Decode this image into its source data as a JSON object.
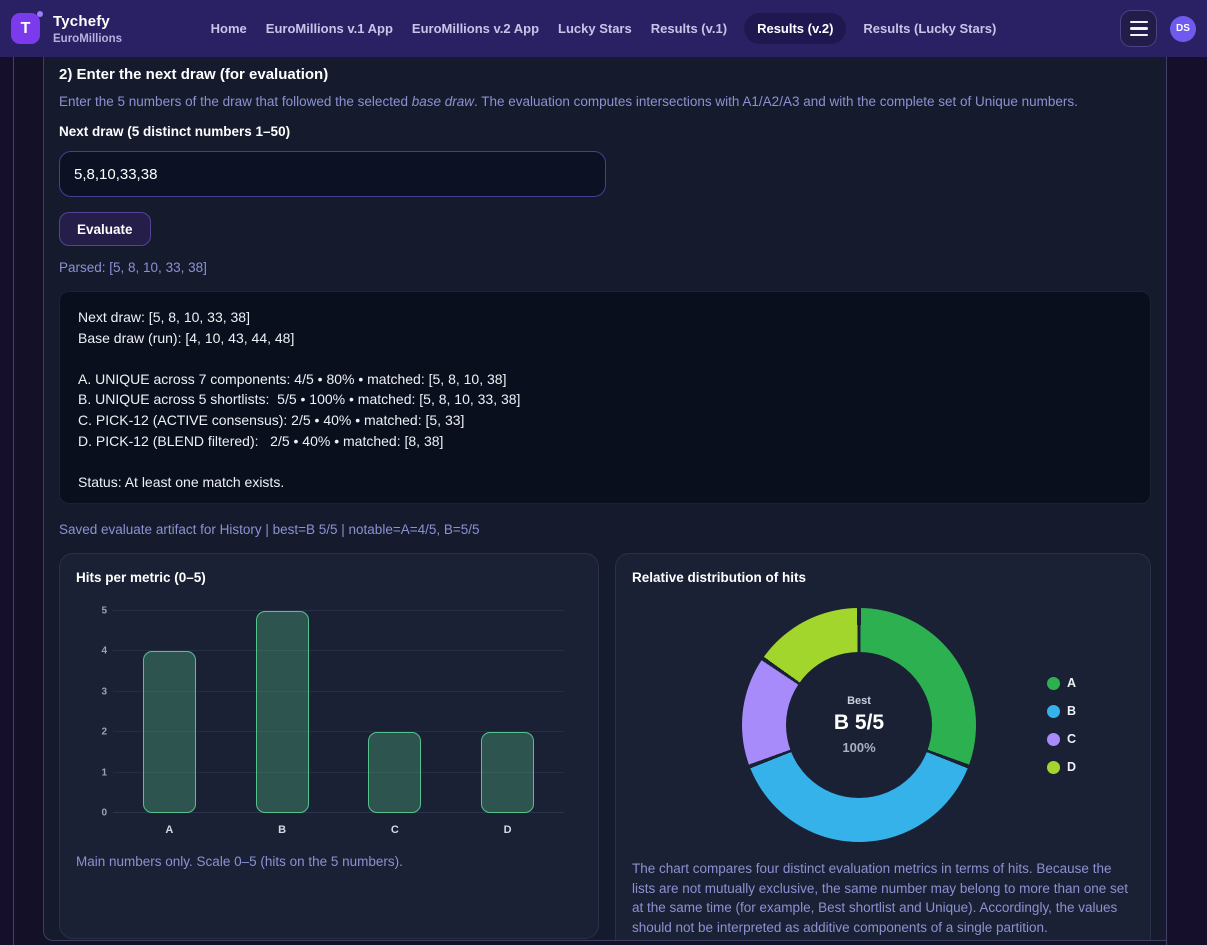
{
  "navbar": {
    "logo_letter": "T",
    "brand_title": "Tychefy",
    "brand_subtitle": "EuroMillions",
    "links": [
      {
        "label": "Home",
        "active": false
      },
      {
        "label": "EuroMillions v.1 App",
        "active": false
      },
      {
        "label": "EuroMillions v.2 App",
        "active": false
      },
      {
        "label": "Lucky Stars",
        "active": false
      },
      {
        "label": "Results (v.1)",
        "active": false
      },
      {
        "label": "Results (v.2)",
        "active": true
      },
      {
        "label": "Results (Lucky Stars)",
        "active": false
      }
    ],
    "avatar_initials": "DS"
  },
  "section": {
    "heading": "2) Enter the next draw (for evaluation)",
    "description_pre": "Enter the 5 numbers of the draw that followed the selected ",
    "description_em": "base draw",
    "description_post": ". The evaluation computes intersections with A1/A2/A3 and with the complete set of Unique numbers.",
    "input_label": "Next draw (5 distinct numbers 1–50)",
    "input_value": "5,8,10,33,38",
    "evaluate_button": "Evaluate",
    "parsed_text": "Parsed: [5, 8, 10, 33, 38]",
    "results_text": "Next draw: [5, 8, 10, 33, 38]\nBase draw (run): [4, 10, 43, 44, 48]\n\nA. UNIQUE across 7 components: 4/5 • 80% • matched: [5, 8, 10, 38]\nB. UNIQUE across 5 shortlists:  5/5 • 100% • matched: [5, 8, 10, 33, 38]\nC. PICK-12 (ACTIVE consensus): 2/5 • 40% • matched: [5, 33]\nD. PICK-12 (BLEND filtered):   2/5 • 40% • matched: [8, 38]\n\nStatus: At least one match exists.",
    "saved_text": "Saved evaluate artifact for History | best=B 5/5 | notable=A=4/5, B=5/5"
  },
  "chart_data": [
    {
      "type": "bar",
      "title": "Hits per metric (0–5)",
      "categories": [
        "A",
        "B",
        "C",
        "D"
      ],
      "values": [
        4,
        5,
        2,
        2
      ],
      "xlabel": "",
      "ylabel": "",
      "ylim": [
        0,
        5
      ],
      "yticks": [
        0,
        1,
        2,
        3,
        4,
        5
      ],
      "grid": true,
      "bar_fill": "rgba(96,220,152,0.28)",
      "bar_border": "#57c18c",
      "caption": "Main numbers only. Scale 0–5 (hits on the 5 numbers)."
    },
    {
      "type": "pie",
      "donut": true,
      "title": "Relative distribution of hits",
      "categories": [
        "A",
        "B",
        "C",
        "D"
      ],
      "values": [
        4,
        5,
        2,
        2
      ],
      "percentages": [
        30.8,
        38.5,
        15.4,
        15.4
      ],
      "colors": [
        "#2db150",
        "#34b2e9",
        "#a78bfa",
        "#a3d62c"
      ],
      "legend_position": "right",
      "center_label_top": "Best",
      "center_label_main": "B 5/5",
      "center_label_sub": "100%",
      "caption": "The chart compares four distinct evaluation metrics in terms of hits. Because the lists are not mutually exclusive, the same number may belong to more than one set at the same time (for example, Best shortlist and Unique). Accordingly, the values should not be interpreted as additive components of a single partition."
    }
  ],
  "colors": {
    "navbar_bg": "#2a2164",
    "logo_bg": "#7c3aed",
    "avatar_bg": "#6e5bee",
    "page_bg": "#150f2b",
    "section_bg": "#151b2d",
    "card_bg": "#1a2134",
    "lavender_text": "#8c91d2",
    "input_border": "#4a3d92"
  }
}
